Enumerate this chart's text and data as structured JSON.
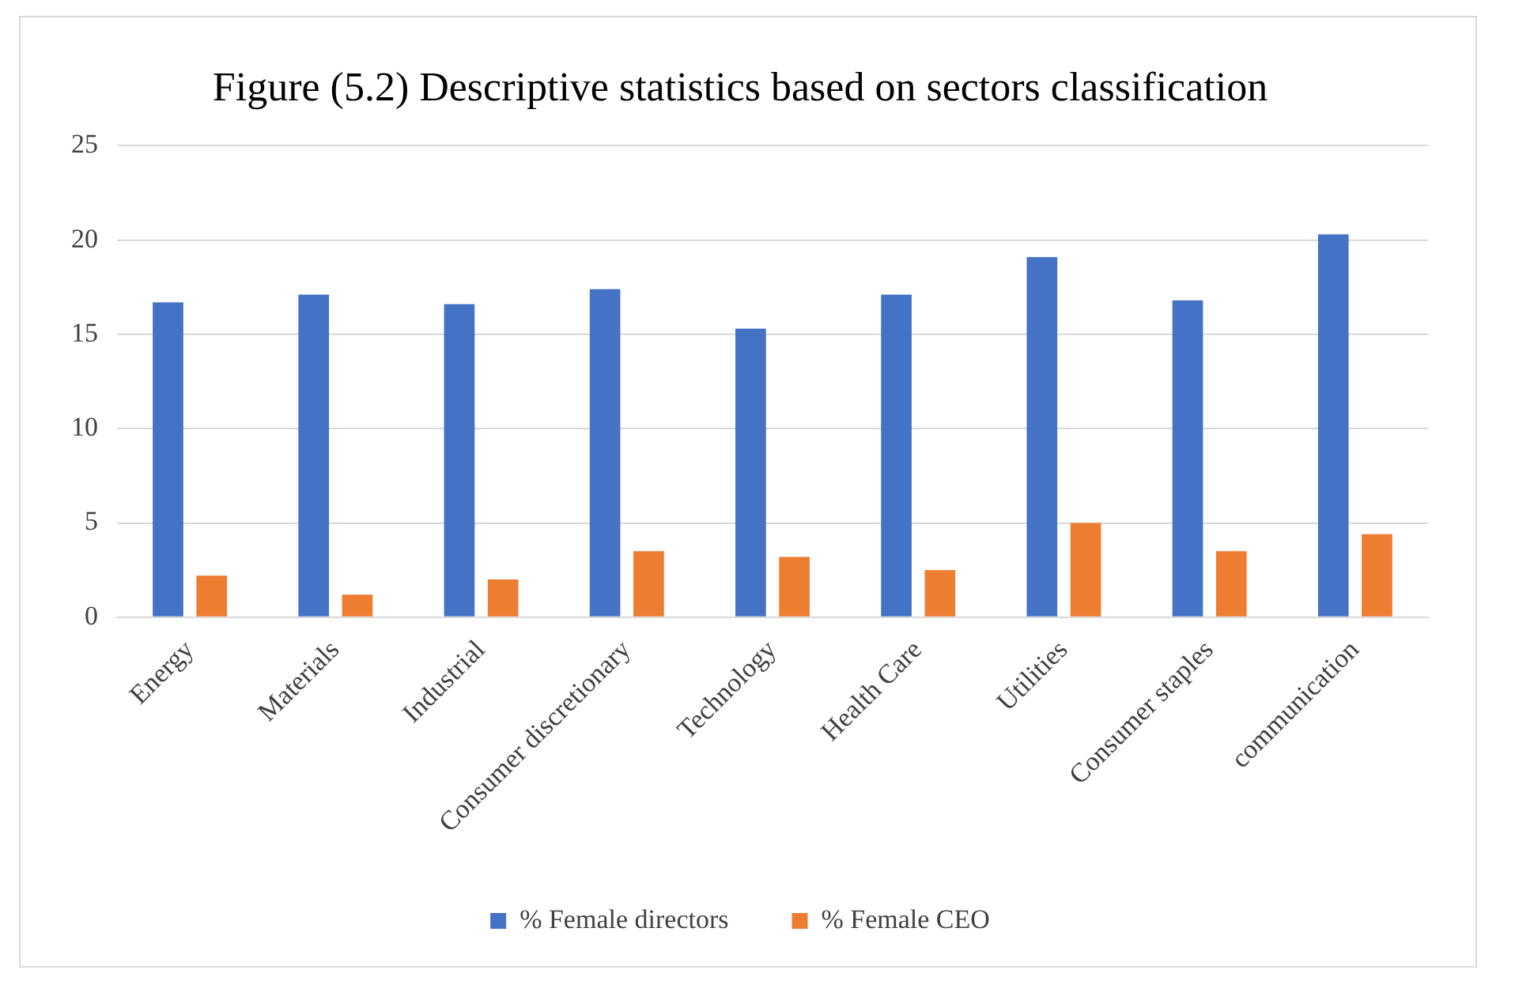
{
  "chart_data": {
    "type": "bar",
    "title": "Figure (5.2) Descriptive statistics based on sectors classification",
    "categories": [
      "Energy",
      "Materials",
      "Industrial",
      "Consumer discretionary",
      "Technology",
      "Health Care",
      "Utilities",
      "Consumer staples",
      "communication"
    ],
    "series": [
      {
        "name": "% Female directors",
        "color": "#4472c4",
        "values": [
          16.7,
          17.1,
          16.6,
          17.4,
          15.3,
          17.1,
          19.1,
          16.8,
          20.3
        ]
      },
      {
        "name": "% Female CEO",
        "color": "#ed7d31",
        "values": [
          2.2,
          1.2,
          2.0,
          3.5,
          3.2,
          2.5,
          5.0,
          3.5,
          4.4
        ]
      }
    ],
    "ylim": [
      0,
      25
    ],
    "yticks": [
      0,
      5,
      10,
      15,
      20,
      25
    ],
    "grid": "y",
    "legend": "bottom"
  }
}
